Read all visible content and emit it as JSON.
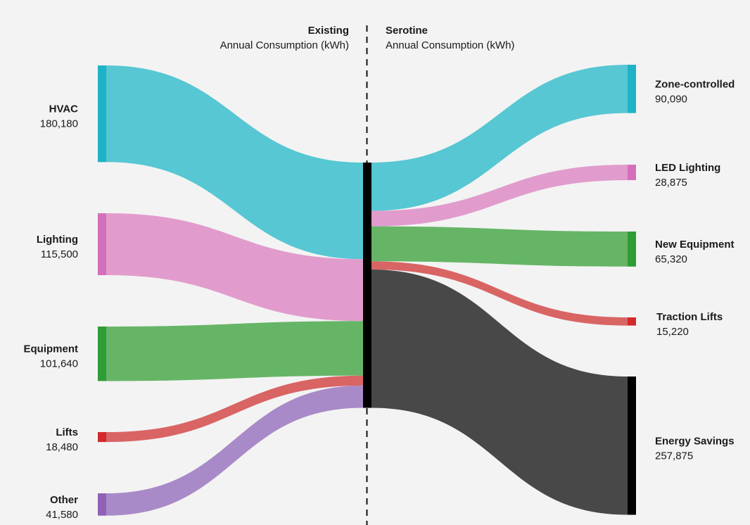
{
  "chart_data": {
    "type": "sankey",
    "headers": {
      "left": {
        "title": "Existing",
        "subtitle": "Annual Consumption (kWh)"
      },
      "right": {
        "title": "Serotine",
        "subtitle": "Annual Consumption (kWh)"
      }
    },
    "sources": [
      {
        "name": "HVAC",
        "value_label": "180,180",
        "value": 180180,
        "color": "#1fb3c7",
        "flow_color": "#56c7d3"
      },
      {
        "name": "Lighting",
        "value_label": "115,500",
        "value": 115500,
        "color": "#d46fba",
        "flow_color": "#e19ccd"
      },
      {
        "name": "Equipment",
        "value_label": "101,640",
        "value": 101640,
        "color": "#2f9c35",
        "flow_color": "#66b566"
      },
      {
        "name": "Lifts",
        "value_label": "18,480",
        "value": 18480,
        "color": "#d22a2a",
        "flow_color": "#d96464"
      },
      {
        "name": "Other",
        "value_label": "41,580",
        "value": 41580,
        "color": "#8f62b8",
        "flow_color": "#a98ac8"
      }
    ],
    "targets": [
      {
        "name": "Zone-controlled",
        "value_label": "90,090",
        "value": 90090,
        "color": "#1fb3c7",
        "flow_color": "#56c7d3"
      },
      {
        "name": "LED Lighting",
        "value_label": "28,875",
        "value": 28875,
        "color": "#d46fba",
        "flow_color": "#e19ccd"
      },
      {
        "name": "New Equipment",
        "value_label": "65,320",
        "value": 65320,
        "color": "#2f9c35",
        "flow_color": "#66b566"
      },
      {
        "name": "Traction Lifts",
        "value_label": "15,220",
        "value": 15220,
        "color": "#d22a2a",
        "flow_color": "#d96464"
      },
      {
        "name": "Energy Savings",
        "value_label": "257,875",
        "value": 257875,
        "color": "#000000",
        "flow_color": "#484848"
      }
    ],
    "hub_color": "#000000"
  }
}
